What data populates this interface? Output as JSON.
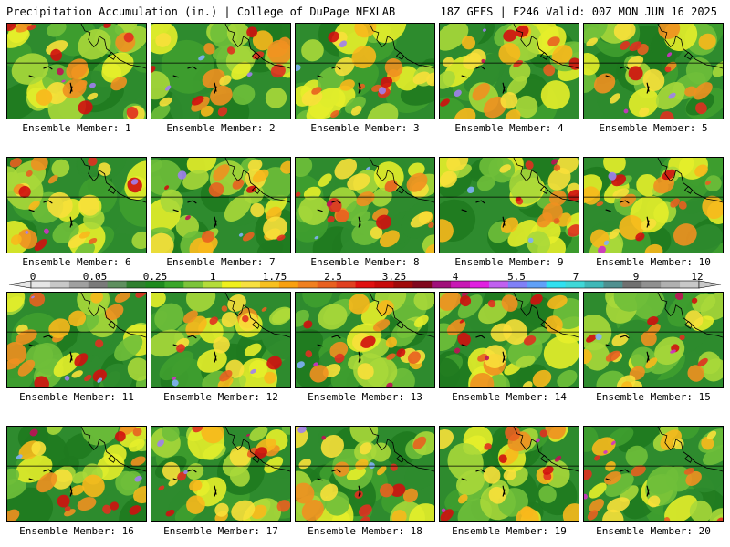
{
  "header": {
    "left": "Precipitation Accumulation (in.) | College of DuPage NEXLAB",
    "right": "18Z GEFS | F246 Valid: 00Z MON JUN 16 2025"
  },
  "legend": {
    "tick_labels": [
      "0",
      "0.05",
      "0.25",
      "1",
      "1.75",
      "2.5",
      "3.25",
      "4",
      "5.5",
      "7",
      "9",
      "12"
    ],
    "colors": [
      "#e6e6e6",
      "#c8c8c8",
      "#a0a0a0",
      "#7a7a7a",
      "#5f8f5f",
      "#2f7f2f",
      "#1e8a1e",
      "#3aa62a",
      "#7cc43a",
      "#b4dc3a",
      "#f0f01e",
      "#f8e040",
      "#f8c020",
      "#f8a010",
      "#f08020",
      "#e86020",
      "#e04020",
      "#e01010",
      "#c80a0a",
      "#a00a0a",
      "#80081e",
      "#a0107a",
      "#c818b4",
      "#e020e0",
      "#c060f0",
      "#8080f8",
      "#60a0f8",
      "#30e0f0",
      "#40d8d8",
      "#40b8b8",
      "#509090",
      "#707070",
      "#909090",
      "#b0b0b0",
      "#c8c8c8"
    ],
    "map_palette": [
      "#1f7a1f",
      "#2e8b2e",
      "#3f9f2f",
      "#6fbf3a",
      "#a8d83a",
      "#e6ee2a",
      "#f8e03a",
      "#f8b81c",
      "#f09020",
      "#e86020",
      "#e03020",
      "#d01010",
      "#c01058",
      "#d030c8",
      "#a080f0",
      "#80b0f8",
      "#a0a0a0"
    ]
  },
  "members": [
    {
      "label": "Ensemble Member: 1"
    },
    {
      "label": "Ensemble Member: 2"
    },
    {
      "label": "Ensemble Member: 3"
    },
    {
      "label": "Ensemble Member: 4"
    },
    {
      "label": "Ensemble Member: 5"
    },
    {
      "label": "Ensemble Member: 6"
    },
    {
      "label": "Ensemble Member: 7"
    },
    {
      "label": "Ensemble Member: 8"
    },
    {
      "label": "Ensemble Member: 9"
    },
    {
      "label": "Ensemble Member: 10"
    },
    {
      "label": "Ensemble Member: 11"
    },
    {
      "label": "Ensemble Member: 12"
    },
    {
      "label": "Ensemble Member: 13"
    },
    {
      "label": "Ensemble Member: 14"
    },
    {
      "label": "Ensemble Member: 15"
    },
    {
      "label": "Ensemble Member: 16"
    },
    {
      "label": "Ensemble Member: 17"
    },
    {
      "label": "Ensemble Member: 18"
    },
    {
      "label": "Ensemble Member: 19"
    },
    {
      "label": "Ensemble Member: 20"
    }
  ]
}
